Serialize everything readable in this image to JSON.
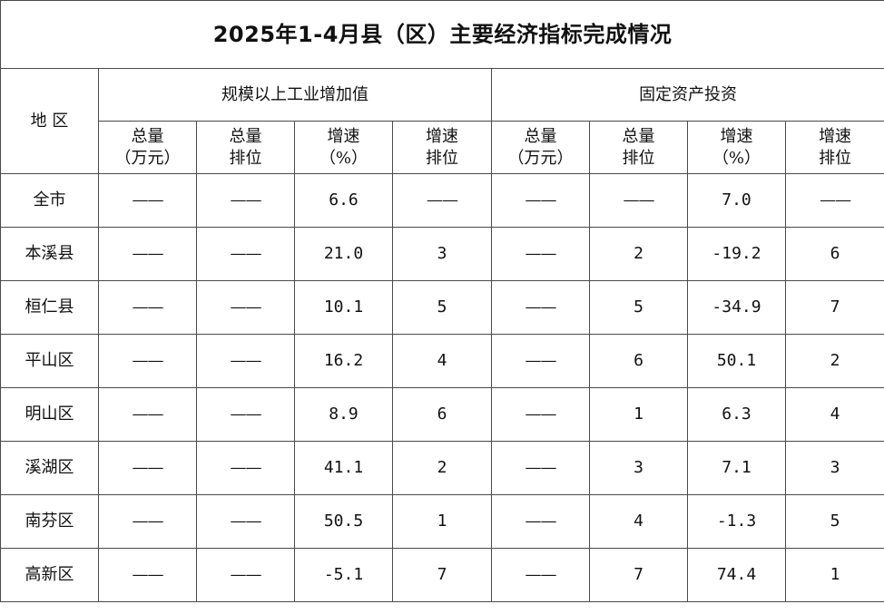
{
  "title": "2025年1-4月县（区）主要经济指标完成情况",
  "header": {
    "region_label": "地 区",
    "group_industry": "规模以上工业增加值",
    "group_investment": "固定资产投资",
    "sub": [
      {
        "line1": "总量",
        "line2": "（万元）"
      },
      {
        "line1": "总量",
        "line2": "排位"
      },
      {
        "line1": "增速",
        "line2": "（%）"
      },
      {
        "line1": "增速",
        "line2": "排位"
      },
      {
        "line1": "总量",
        "line2": "（万元）"
      },
      {
        "line1": "总量",
        "line2": "排位"
      },
      {
        "line1": "增速",
        "line2": "（%）"
      },
      {
        "line1": "增速",
        "line2": "排位"
      }
    ]
  },
  "rows": [
    {
      "region": "全市",
      "cells": [
        "——",
        "——",
        "6.6",
        "——",
        "——",
        "——",
        "7.0",
        "——"
      ]
    },
    {
      "region": "本溪县",
      "cells": [
        "——",
        "——",
        "21.0",
        "3",
        "——",
        "2",
        "-19.2",
        "6"
      ]
    },
    {
      "region": "桓仁县",
      "cells": [
        "——",
        "——",
        "10.1",
        "5",
        "——",
        "5",
        "-34.9",
        "7"
      ]
    },
    {
      "region": "平山区",
      "cells": [
        "——",
        "——",
        "16.2",
        "4",
        "——",
        "6",
        "50.1",
        "2"
      ]
    },
    {
      "region": "明山区",
      "cells": [
        "——",
        "——",
        "8.9",
        "6",
        "——",
        "1",
        "6.3",
        "4"
      ]
    },
    {
      "region": "溪湖区",
      "cells": [
        "——",
        "——",
        "41.1",
        "2",
        "——",
        "3",
        "7.1",
        "3"
      ]
    },
    {
      "region": "南芬区",
      "cells": [
        "——",
        "——",
        "50.5",
        "1",
        "——",
        "4",
        "-1.3",
        "5"
      ]
    },
    {
      "region": "高新区",
      "cells": [
        "——",
        "——",
        "-5.1",
        "7",
        "——",
        "7",
        "74.4",
        "1"
      ]
    }
  ]
}
